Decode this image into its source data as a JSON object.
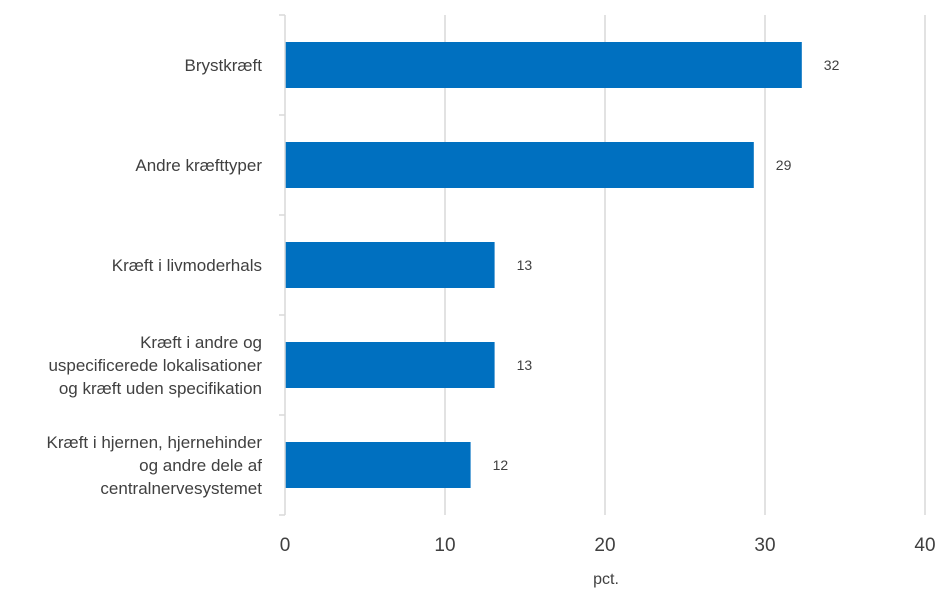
{
  "chart_data": {
    "type": "bar",
    "orientation": "horizontal",
    "categories": [
      "Brystkræft",
      "Andre kræfttyper",
      "Kræft i livmoderhals",
      "Kræft i andre og uspecificerede lokalisationer og kræft uden specifikation",
      "Kræft i hjernen, hjernehinder og andre dele af centralnervesystemet"
    ],
    "category_lines": [
      [
        "Brystkræft"
      ],
      [
        "Andre kræfttyper"
      ],
      [
        "Kræft i livmoderhals"
      ],
      [
        "Kræft i andre og",
        "uspecificerede lokalisationer",
        "og kræft uden specifikation"
      ],
      [
        "Kræft i hjernen, hjernehinder",
        "og andre dele af",
        "centralnervesystemet"
      ]
    ],
    "values": [
      32.3,
      29.3,
      13.1,
      13.1,
      11.6
    ],
    "data_labels": [
      "32",
      "29",
      "13",
      "13",
      "12"
    ],
    "xlim": [
      0,
      40
    ],
    "xticks": [
      0,
      10,
      20,
      30,
      40
    ],
    "xlabel": "pct.",
    "ylabel": "",
    "title": "",
    "grid": "vertical",
    "legend": "none",
    "bar_color": "#0070C0",
    "grid_color": "#d9d9d9",
    "text_color": "#404040"
  }
}
